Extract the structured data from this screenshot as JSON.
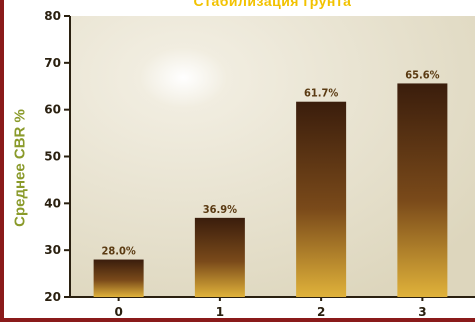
{
  "chart_data": {
    "type": "bar",
    "title": "Стабилизация грунта",
    "ylabel": "Среднее CBR %",
    "xlabel": "",
    "categories": [
      "0",
      "1",
      "2",
      "3"
    ],
    "values": [
      28.0,
      36.9,
      61.7,
      65.6
    ],
    "value_labels": [
      "28.0%",
      "36.9%",
      "61.7%",
      "65.6%"
    ],
    "yticks": [
      20,
      30,
      40,
      50,
      60,
      70,
      80
    ],
    "ylim": [
      20,
      80
    ],
    "grid": false,
    "colors": {
      "bar_top": "#3a1d0c",
      "bar_bottom": "#e0b23a",
      "plot_bg": "#e9e4d2",
      "ylabel": "#8a9a2a",
      "title": "#f2c200",
      "frame": "#8a1a1a"
    }
  }
}
